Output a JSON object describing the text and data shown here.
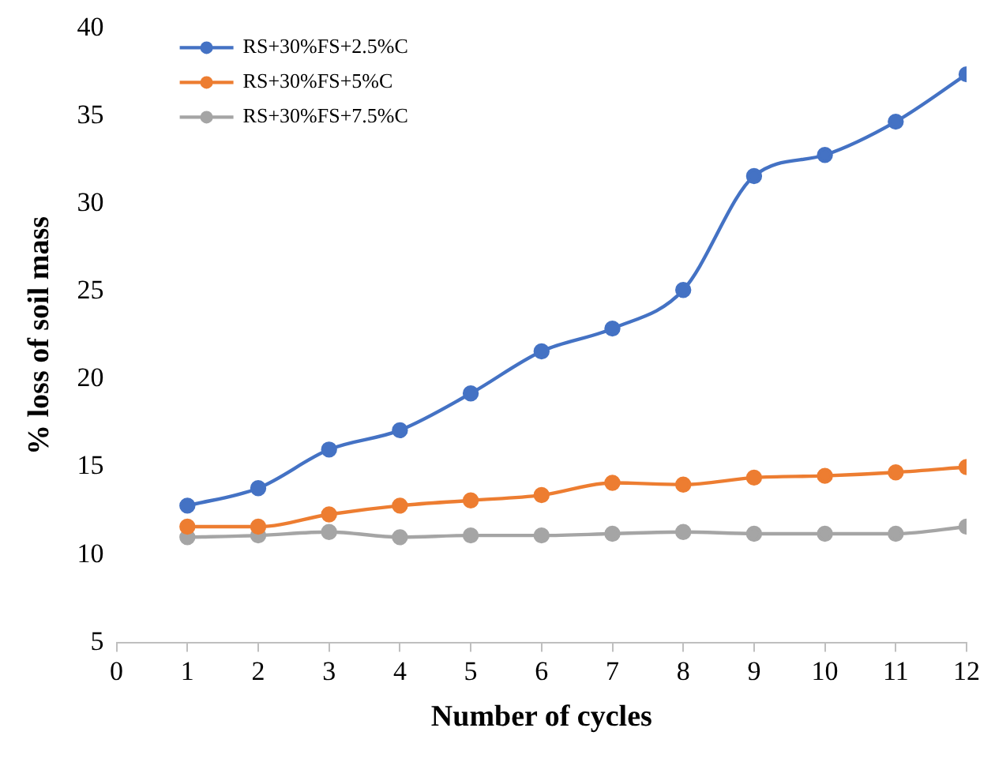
{
  "chart_data": {
    "type": "line",
    "xlabel": "Number of cycles",
    "ylabel": "% loss of soil mass",
    "x": [
      1,
      2,
      3,
      4,
      5,
      6,
      7,
      8,
      9,
      10,
      11,
      12
    ],
    "series": [
      {
        "name": "RS+30%FS+2.5%C",
        "color": "#4472c4",
        "values": [
          12.8,
          13.8,
          16.0,
          17.1,
          19.2,
          21.6,
          22.9,
          25.1,
          31.6,
          32.8,
          34.7,
          37.4
        ]
      },
      {
        "name": "RS+30%FS+5%C",
        "color": "#ed7d31",
        "values": [
          11.6,
          11.6,
          12.3,
          12.8,
          13.1,
          13.4,
          14.1,
          14.0,
          14.4,
          14.5,
          14.7,
          15.0
        ]
      },
      {
        "name": "RS+30%FS+7.5%C",
        "color": "#a5a5a5",
        "values": [
          11.0,
          11.1,
          11.3,
          11.0,
          11.1,
          11.1,
          11.2,
          11.3,
          11.2,
          11.2,
          11.2,
          11.6
        ]
      }
    ],
    "xlim": [
      0,
      12
    ],
    "xticks": [
      0,
      1,
      2,
      3,
      4,
      5,
      6,
      7,
      8,
      9,
      10,
      11,
      12
    ],
    "ylim": [
      5,
      40
    ],
    "yticks": [
      5,
      10,
      15,
      20,
      25,
      30,
      35,
      40
    ],
    "grid": false,
    "legend": "top left",
    "marker": "circle",
    "line_style": "solid"
  }
}
